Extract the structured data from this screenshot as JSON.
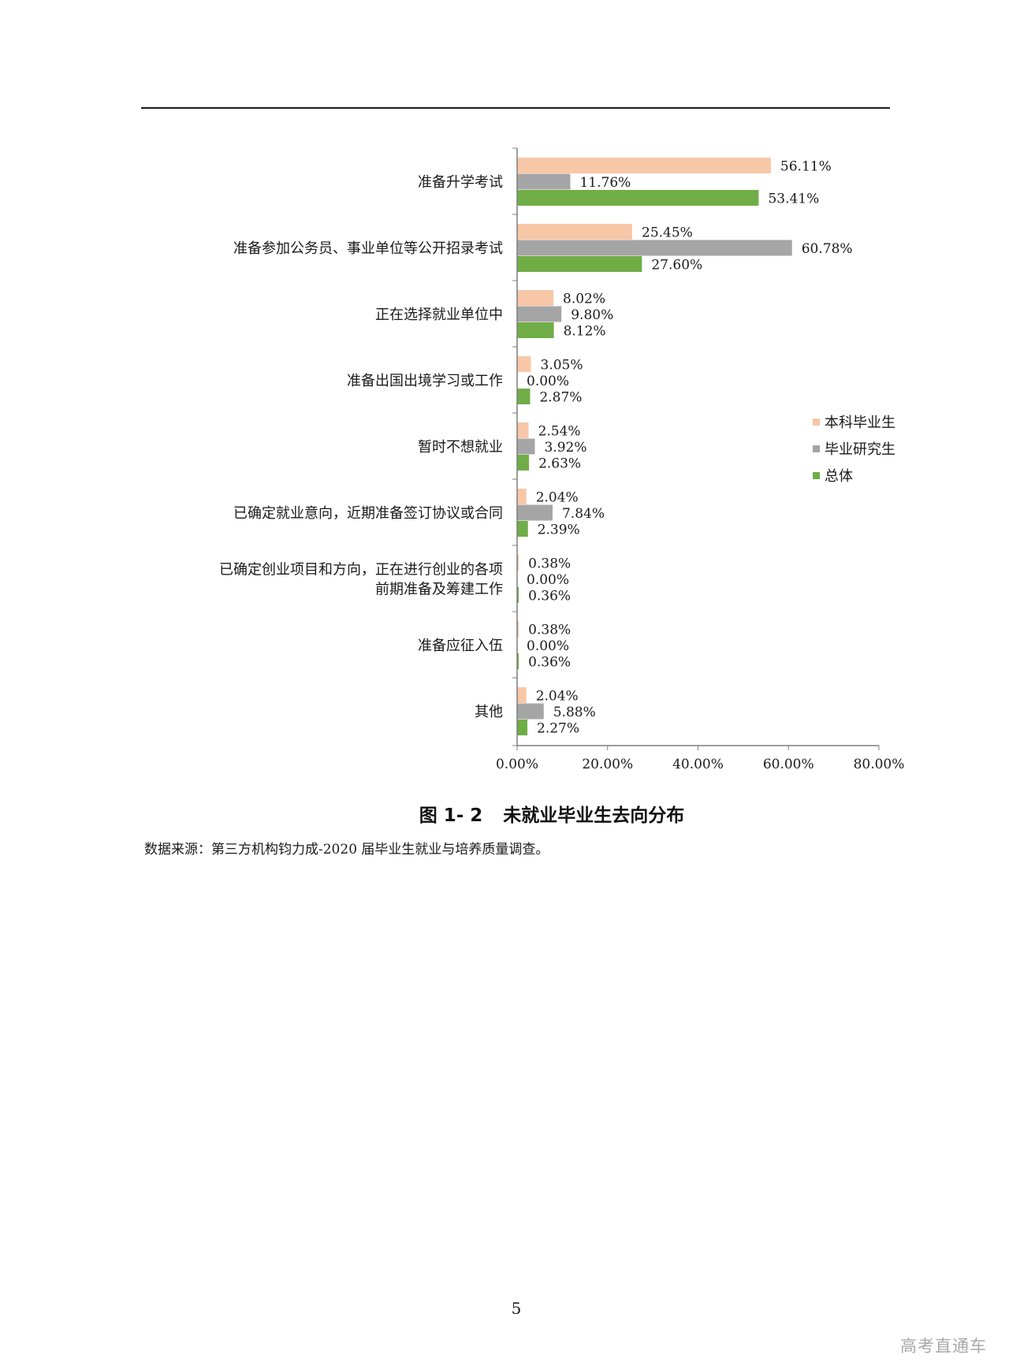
{
  "figure": {
    "number": "图 1- 2",
    "title": "未就业毕业生去向分布",
    "source": "数据来源：第三方机构钧力成-2020 届毕业生就业与培养质量调查。"
  },
  "page_number": "5",
  "watermark": "高考直通车",
  "colors": {
    "undergrad": "#F8C7A8",
    "graduate": "#A5A5A5",
    "overall": "#70AD47"
  },
  "chart_data": {
    "type": "bar",
    "orientation": "horizontal",
    "title": "未就业毕业生去向分布",
    "categories": [
      [
        "准备升学考试"
      ],
      [
        "准备参加公务员、事业单位等公开招录考试"
      ],
      [
        "正在选择就业单位中"
      ],
      [
        "准备出国出境学习或工作"
      ],
      [
        "暂时不想就业"
      ],
      [
        "已确定就业意向，近期准备签订协议或合同"
      ],
      [
        "已确定创业项目和方向，正在进行创业的各项",
        "前期准备及筹建工作"
      ],
      [
        "准备应征入伍"
      ],
      [
        "其他"
      ]
    ],
    "series": [
      {
        "name": "本科毕业生",
        "values": [
          56.11,
          25.45,
          8.02,
          3.05,
          2.54,
          2.04,
          0.38,
          0.38,
          2.04
        ],
        "labels": [
          "56.11%",
          "25.45%",
          "8.02%",
          "3.05%",
          "2.54%",
          "2.04%",
          "0.38%",
          "0.38%",
          "2.04%"
        ]
      },
      {
        "name": "毕业研究生",
        "values": [
          11.76,
          60.78,
          9.8,
          0.0,
          3.92,
          7.84,
          0.0,
          0.0,
          5.88
        ],
        "labels": [
          "11.76%",
          "60.78%",
          "9.80%",
          "0.00%",
          "3.92%",
          "7.84%",
          "0.00%",
          "0.00%",
          "5.88%"
        ]
      },
      {
        "name": "总体",
        "values": [
          53.41,
          27.6,
          8.12,
          2.87,
          2.63,
          2.39,
          0.36,
          0.36,
          2.27
        ],
        "labels": [
          "53.41%",
          "27.60%",
          "8.12%",
          "2.87%",
          "2.63%",
          "2.39%",
          "0.36%",
          "0.36%",
          "2.27%"
        ]
      }
    ],
    "xlim": [
      0,
      80
    ],
    "xticks": [
      "0.00%",
      "20.00%",
      "40.00%",
      "60.00%",
      "80.00%"
    ],
    "grid": false,
    "legend_position": "right"
  }
}
